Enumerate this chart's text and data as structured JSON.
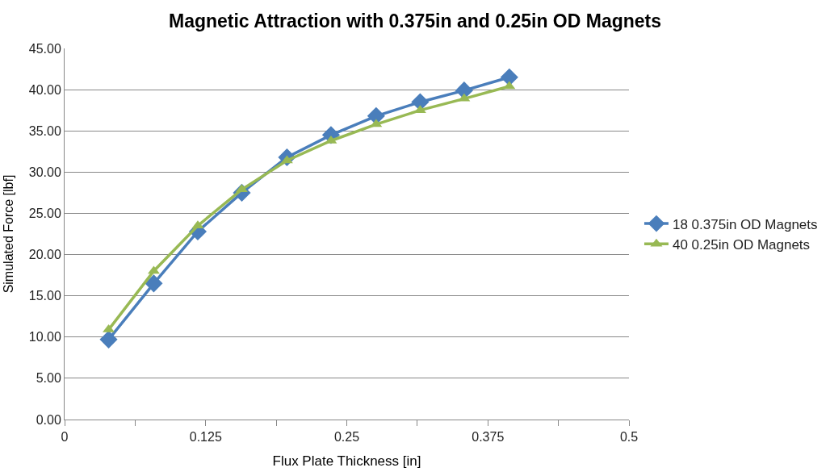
{
  "chart_data": {
    "type": "line",
    "title": "Magnetic Attraction with 0.375in and 0.25in OD Magnets",
    "xlabel": "Flux Plate Thickness [in]",
    "ylabel": "Simulated Force [lbf]",
    "x": [
      0.039,
      0.079,
      0.118,
      0.157,
      0.197,
      0.236,
      0.276,
      0.315,
      0.354,
      0.394
    ],
    "series": [
      {
        "name": "18 0.375in OD Magnets",
        "color": "#4a7ebb",
        "marker": "diamond",
        "values": [
          9.7,
          16.5,
          22.8,
          27.5,
          31.8,
          34.5,
          36.8,
          38.5,
          39.9,
          41.5
        ]
      },
      {
        "name": "40 0.25in OD Magnets",
        "color": "#98b954",
        "marker": "triangle",
        "values": [
          10.9,
          18.0,
          23.5,
          27.9,
          31.4,
          33.8,
          35.8,
          37.5,
          38.9,
          40.4
        ]
      }
    ],
    "xlim": [
      0,
      0.5
    ],
    "xticks": [
      0,
      {
        "value": 0.0625,
        "label": null
      },
      0.125,
      {
        "value": 0.1875,
        "label": null
      },
      0.25,
      {
        "value": 0.3125,
        "label": null
      },
      0.375,
      {
        "value": 0.4375,
        "label": null
      },
      0.5
    ],
    "ylim": [
      0,
      45
    ],
    "yticks": [
      {
        "value": 0,
        "label": "0.00"
      },
      {
        "value": 5,
        "label": "5.00"
      },
      {
        "value": 10,
        "label": "10.00"
      },
      {
        "value": 15,
        "label": "15.00"
      },
      {
        "value": 20,
        "label": "20.00"
      },
      {
        "value": 25,
        "label": "25.00"
      },
      {
        "value": 30,
        "label": "30.00"
      },
      {
        "value": 35,
        "label": "35.00"
      },
      {
        "value": 40,
        "label": "40.00"
      },
      {
        "value": 45,
        "label": "45.00"
      }
    ],
    "grid": "y",
    "legend": "right",
    "line_style": "solid"
  }
}
